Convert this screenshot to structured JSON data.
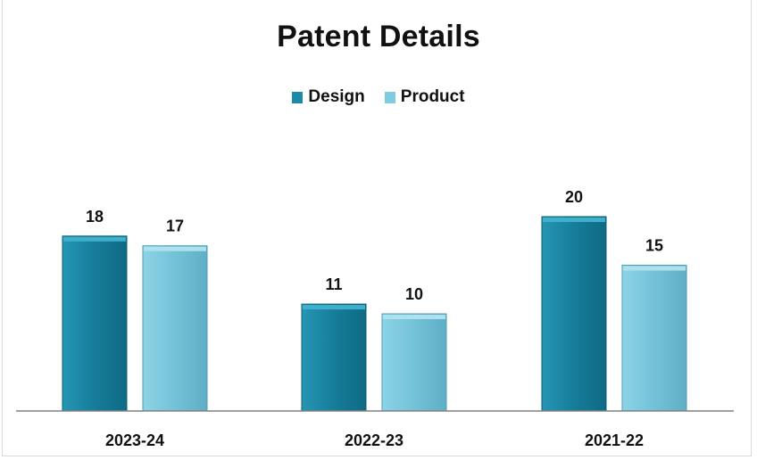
{
  "chart_data": {
    "type": "bar",
    "title": "Patent Details",
    "categories": [
      "2023-24",
      "2022-23",
      "2021-22"
    ],
    "series": [
      {
        "name": "Design",
        "values": [
          18,
          11,
          20
        ],
        "color": "#1a8aa8"
      },
      {
        "name": "Product",
        "values": [
          17,
          10,
          15
        ],
        "color": "#7fcbe0"
      }
    ],
    "ylim": [
      0,
      24
    ],
    "grid": false,
    "legend_position": "top"
  }
}
